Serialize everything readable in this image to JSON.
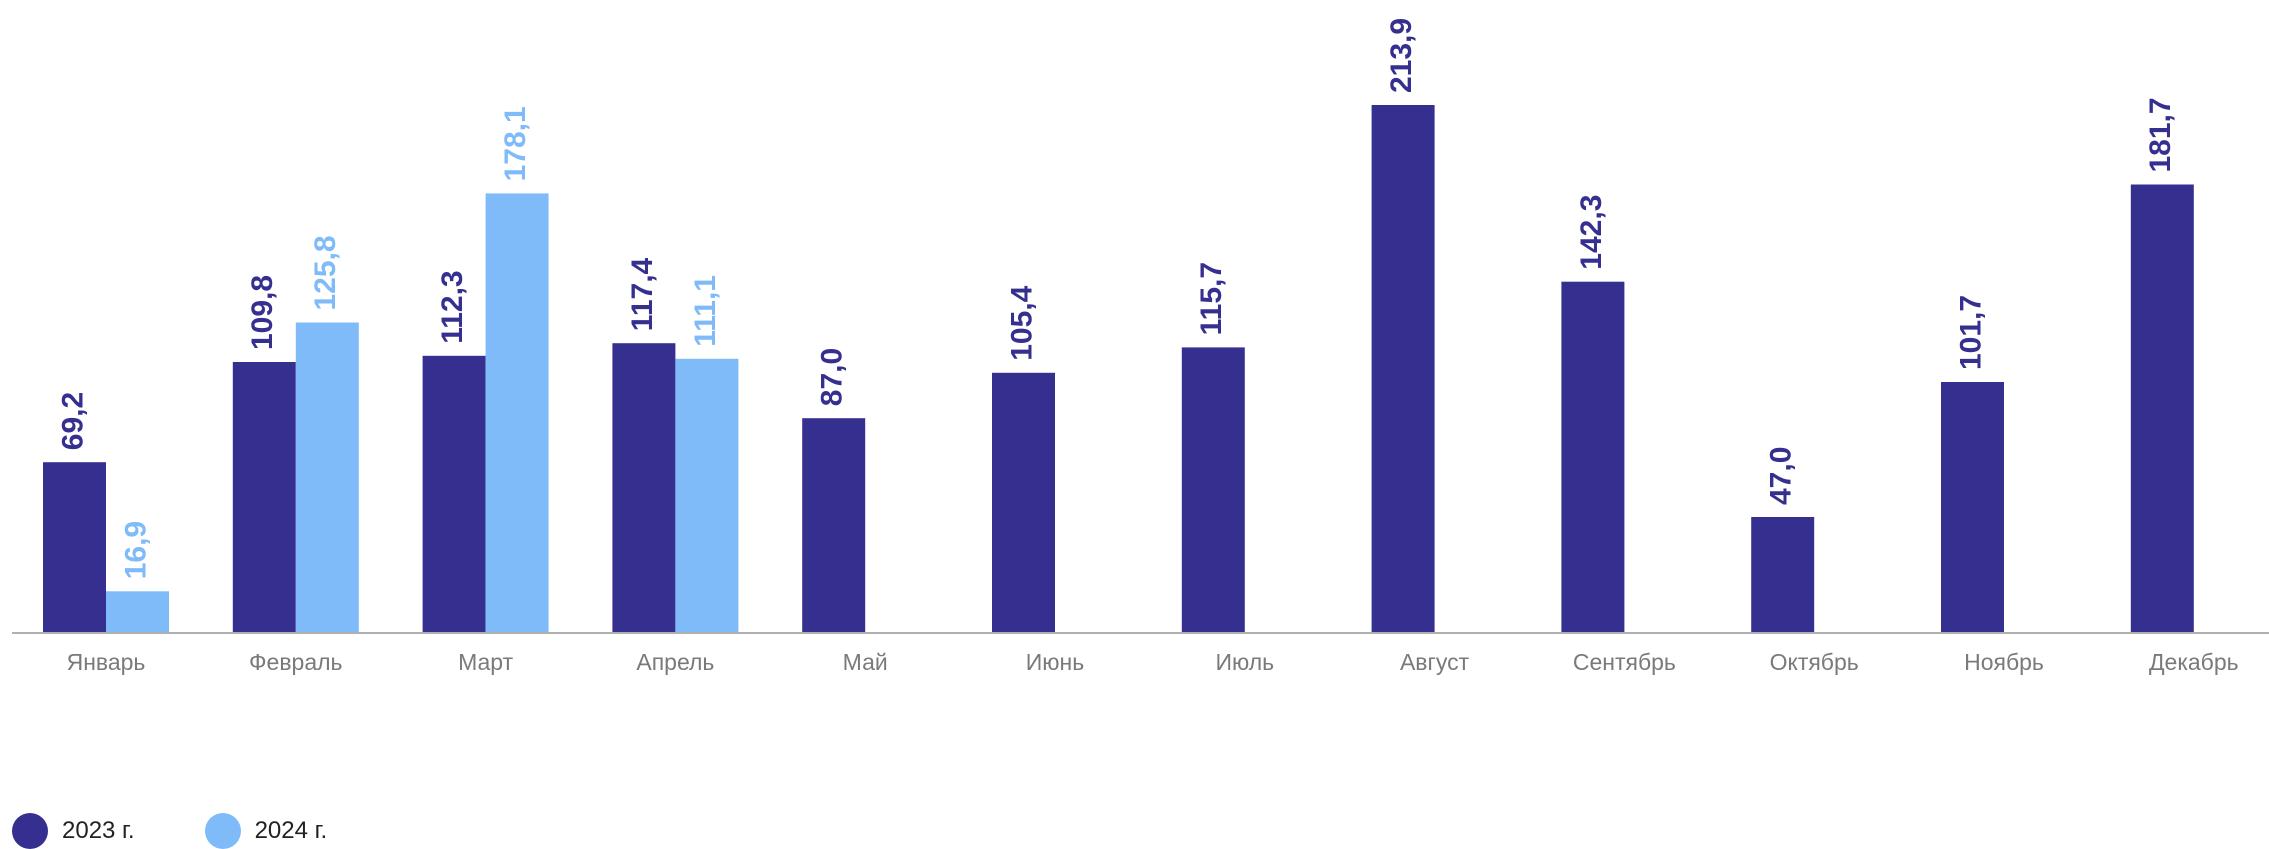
{
  "chart_data": {
    "type": "bar",
    "categories": [
      "Январь",
      "Февраль",
      "Март",
      "Апрель",
      "Май",
      "Июнь",
      "Июль",
      "Август",
      "Сентябрь",
      "Октябрь",
      "Ноябрь",
      "Декабрь"
    ],
    "series": [
      {
        "name": "2023 г.",
        "color": "#35308f",
        "values": [
          69.2,
          109.8,
          112.3,
          117.4,
          87.0,
          105.4,
          115.7,
          213.9,
          142.3,
          47.0,
          101.7,
          181.7
        ],
        "labels": [
          "69,2",
          "109,8",
          "112,3",
          "117,4",
          "87,0",
          "105,4",
          "115,7",
          "213,9",
          "142,3",
          "47,0",
          "101,7",
          "181,7"
        ]
      },
      {
        "name": "2024 г.",
        "color": "#7fbaf9",
        "values": [
          16.9,
          125.8,
          178.1,
          111.1,
          null,
          null,
          null,
          null,
          null,
          null,
          null,
          null
        ],
        "labels": [
          "16,9",
          "125,8",
          "178,1",
          "111,1",
          null,
          null,
          null,
          null,
          null,
          null,
          null,
          null
        ]
      }
    ],
    "ylim": [
      0,
      213.9
    ],
    "grid": false,
    "legend_position": "bottom-left",
    "axis_color": "#b0b0b0",
    "category_label_color": "#7a7a7a"
  }
}
